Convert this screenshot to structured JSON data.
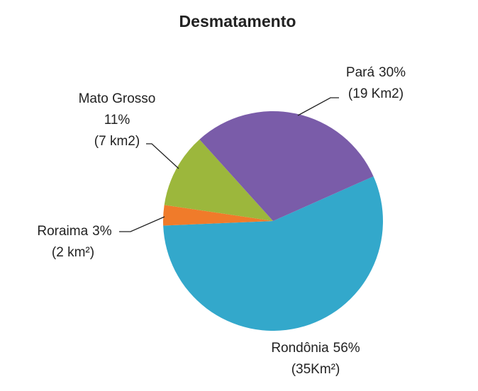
{
  "chart_data": {
    "type": "pie",
    "title": "Desmatamento",
    "categories": [
      "Rondônia",
      "Roraima",
      "Mato Grosso",
      "Pará"
    ],
    "values": [
      56,
      3,
      11,
      30
    ],
    "value_labels": [
      "56%",
      "3%",
      "11%",
      "30%"
    ],
    "area_labels": [
      "(35Km²)",
      "(2 km²)",
      "(7 km2)",
      "(19 Km2)"
    ],
    "colors": [
      "#33a8cb",
      "#f07b2a",
      "#9cb73c",
      "#7a5ca9"
    ]
  }
}
